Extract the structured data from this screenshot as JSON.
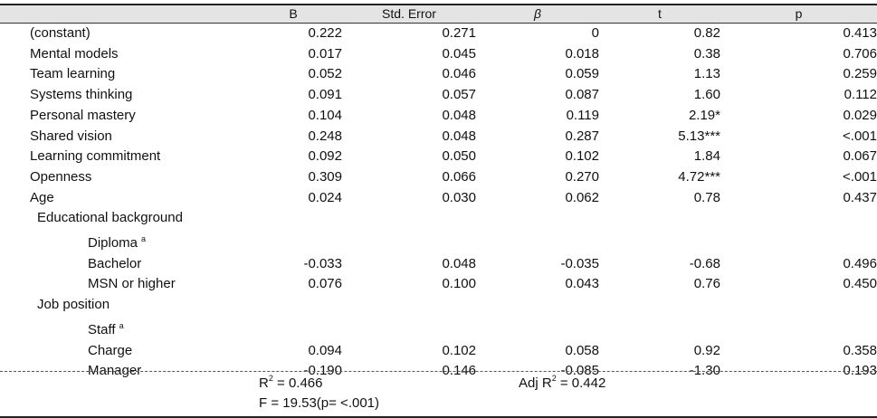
{
  "headers": {
    "b": "B",
    "se": "Std. Error",
    "beta": "β",
    "t": "t",
    "p": "p"
  },
  "rows": [
    {
      "label": "(constant)",
      "b": "0.222",
      "se": "0.271",
      "beta": "0",
      "t": "0.82",
      "p": "0.413"
    },
    {
      "label": "Mental models",
      "b": "0.017",
      "se": "0.045",
      "beta": "0.018",
      "t": "0.38",
      "p": "0.706"
    },
    {
      "label": "Team learning",
      "b": "0.052",
      "se": "0.046",
      "beta": "0.059",
      "t": "1.13",
      "p": "0.259"
    },
    {
      "label": "Systems thinking",
      "b": "0.091",
      "se": "0.057",
      "beta": "0.087",
      "t": "1.60",
      "p": "0.112"
    },
    {
      "label": "Personal mastery",
      "b": "0.104",
      "se": "0.048",
      "beta": "0.119",
      "t": "2.19*",
      "p": "0.029"
    },
    {
      "label": "Shared vision",
      "b": "0.248",
      "se": "0.048",
      "beta": "0.287",
      "t": "5.13***",
      "p": "<.001"
    },
    {
      "label": "Learning commitment",
      "b": "0.092",
      "se": "0.050",
      "beta": "0.102",
      "t": "1.84",
      "p": "0.067"
    },
    {
      "label": "Openness",
      "b": "0.309",
      "se": "0.066",
      "beta": "0.270",
      "t": "4.72***",
      "p": "<.001"
    },
    {
      "label": "Age",
      "b": "0.024",
      "se": "0.030",
      "beta": "0.062",
      "t": "0.78",
      "p": "0.437"
    },
    {
      "label": "Educational background"
    },
    {
      "label": "Diploma",
      "ref": "a"
    },
    {
      "label": "Bachelor",
      "b": "-0.033",
      "se": "0.048",
      "beta": "-0.035",
      "t": "-0.68",
      "p": "0.496"
    },
    {
      "label": "MSN or higher",
      "b": "0.076",
      "se": "0.100",
      "beta": "0.043",
      "t": "0.76",
      "p": "0.450"
    },
    {
      "label": "Job position"
    },
    {
      "label": "Staff",
      "ref": "a"
    },
    {
      "label": "Charge",
      "b": "0.094",
      "se": "0.102",
      "beta": "0.058",
      "t": "0.92",
      "p": "0.358"
    },
    {
      "label": "Manager",
      "b": "-0.190",
      "se": "0.146",
      "beta": "-0.085",
      "t": "-1.30",
      "p": "0.193"
    }
  ],
  "footer": {
    "r2_prefix": "R",
    "r2_exp": "2",
    "r2_value": " = 0.466",
    "adj_prefix": "Adj R",
    "adj_exp": "2",
    "adj_value": " = 0.442",
    "f_stat": "F = 19.53(p= <.001)"
  }
}
